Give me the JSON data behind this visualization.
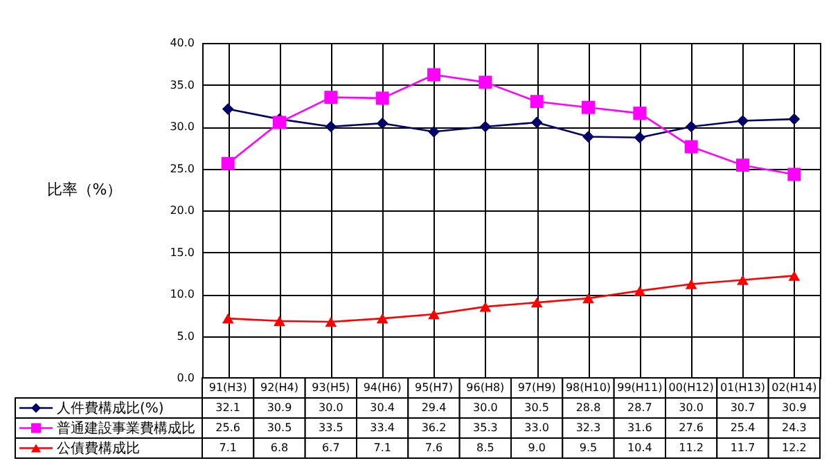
{
  "chart_data": {
    "type": "line",
    "ylabel": "比率（%）",
    "categories": [
      "91(H3)",
      "92(H4)",
      "93(H5)",
      "94(H6)",
      "95(H7)",
      "96(H8)",
      "97(H9)",
      "98(H10)",
      "99(H11)",
      "00(H12)",
      "01(H13)",
      "02(H14)"
    ],
    "series": [
      {
        "name": "人件費構成比(%)",
        "color": "#000066",
        "marker": "diamond",
        "values": [
          32.1,
          30.9,
          30.0,
          30.4,
          29.4,
          30.0,
          30.5,
          28.8,
          28.7,
          30.0,
          30.7,
          30.9
        ],
        "value_labels": [
          "32.1",
          "30.9",
          "30.0",
          "30.4",
          "29.4",
          "30.0",
          "30.5",
          "28.8",
          "28.7",
          "30.0",
          "30.7",
          "30.9"
        ]
      },
      {
        "name": "普通建設事業費構成比",
        "color": "#ff00ff",
        "marker": "square",
        "values": [
          25.6,
          30.5,
          33.5,
          33.4,
          36.2,
          35.3,
          33.0,
          32.3,
          31.6,
          27.6,
          25.4,
          24.3
        ],
        "value_labels": [
          "25.6",
          "30.5",
          "33.5",
          "33.4",
          "36.2",
          "35.3",
          "33.0",
          "32.3",
          "31.6",
          "27.6",
          "25.4",
          "24.3"
        ]
      },
      {
        "name": "公債費構成比",
        "color": "#ff0000",
        "marker": "triangle",
        "values": [
          7.1,
          6.8,
          6.7,
          7.1,
          7.6,
          8.5,
          9.0,
          9.5,
          10.4,
          11.2,
          11.7,
          12.2
        ],
        "value_labels": [
          "7.1",
          "6.8",
          "6.7",
          "7.1",
          "7.6",
          "8.5",
          "9.0",
          "9.5",
          "10.4",
          "11.2",
          "11.7",
          "12.2"
        ]
      }
    ],
    "ylim": [
      0,
      40
    ],
    "yticks": [
      {
        "value": 0,
        "label": "0.0"
      },
      {
        "value": 5,
        "label": "5.0"
      },
      {
        "value": 10,
        "label": "10.0"
      },
      {
        "value": 15,
        "label": "15.0"
      },
      {
        "value": 20,
        "label": "20.0"
      },
      {
        "value": 25,
        "label": "25.0"
      },
      {
        "value": 30,
        "label": "30.0"
      },
      {
        "value": 35,
        "label": "35.0"
      },
      {
        "value": 40,
        "label": "40.0"
      }
    ],
    "grid": true,
    "legend": "bottom left"
  }
}
